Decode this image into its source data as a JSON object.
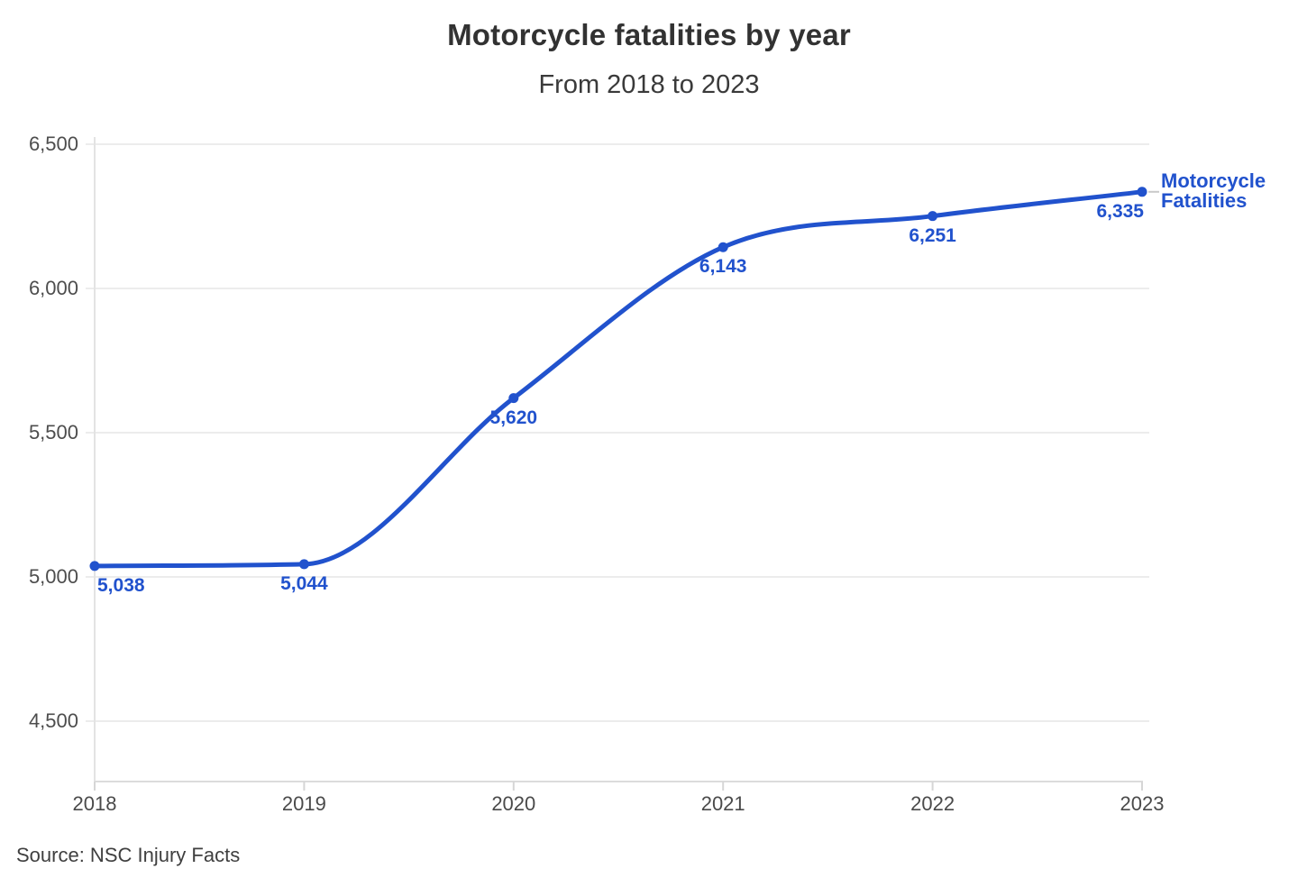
{
  "colors": {
    "accent": "#2152cd",
    "grid": "#ececec",
    "axis_line": "#dcdcdc",
    "tick_mark": "#d6d6d6",
    "connector": "#c9c9c9",
    "tick_text": "#4d4d4d",
    "title_text": "#323232"
  },
  "chart_data": {
    "type": "line",
    "title": "Motorcycle fatalities by year",
    "subtitle": "From 2018 to 2023",
    "source": "Source: NSC Injury Facts",
    "x": [
      2018,
      2019,
      2020,
      2021,
      2022,
      2023
    ],
    "x_tick_labels": [
      "2018",
      "2019",
      "2020",
      "2021",
      "2022",
      "2023"
    ],
    "series": [
      {
        "name": "Motorcycle Fatalities",
        "values": [
          5038,
          5044,
          5620,
          6143,
          6251,
          6335
        ]
      }
    ],
    "point_labels": [
      "5,038",
      "5,044",
      "5,620",
      "6,143",
      "6,251",
      "6,335"
    ],
    "y_ticks": [
      4500,
      5000,
      5500,
      6000,
      6500
    ],
    "y_tick_labels": [
      "4,500",
      "5,000",
      "5,500",
      "6,000",
      "6,500"
    ],
    "ylim": [
      4290,
      6530
    ],
    "grid": true,
    "legend_position": "right-of-last-point"
  }
}
